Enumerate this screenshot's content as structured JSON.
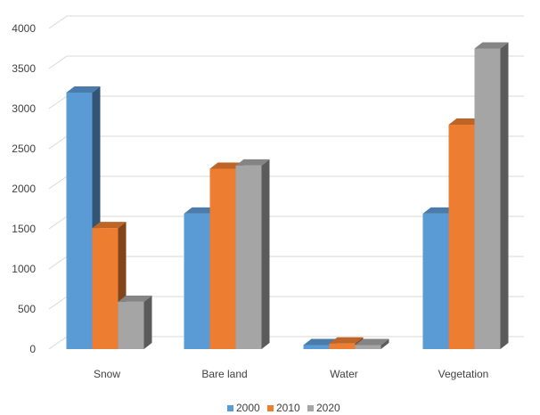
{
  "chart_data": {
    "type": "bar",
    "style": "3d-clustered-column",
    "title": "",
    "xlabel": "",
    "ylabel": "",
    "categories": [
      "Snow",
      "Bare land",
      "Water",
      "Vegetation"
    ],
    "series": [
      {
        "name": "2000",
        "color": "#5B9BD5",
        "values": [
          3200,
          1690,
          50,
          1690
        ]
      },
      {
        "name": "2010",
        "color": "#ED7D31",
        "values": [
          1510,
          2250,
          70,
          2800
        ]
      },
      {
        "name": "2020",
        "color": "#A5A5A5",
        "values": [
          590,
          2290,
          50,
          3750
        ]
      }
    ],
    "ylim": [
      0,
      4000
    ],
    "yticks": [
      "0",
      "500",
      "1000",
      "1500",
      "2000",
      "2500",
      "3000",
      "3500",
      "4000"
    ],
    "grid": true,
    "legend": "bottom"
  }
}
